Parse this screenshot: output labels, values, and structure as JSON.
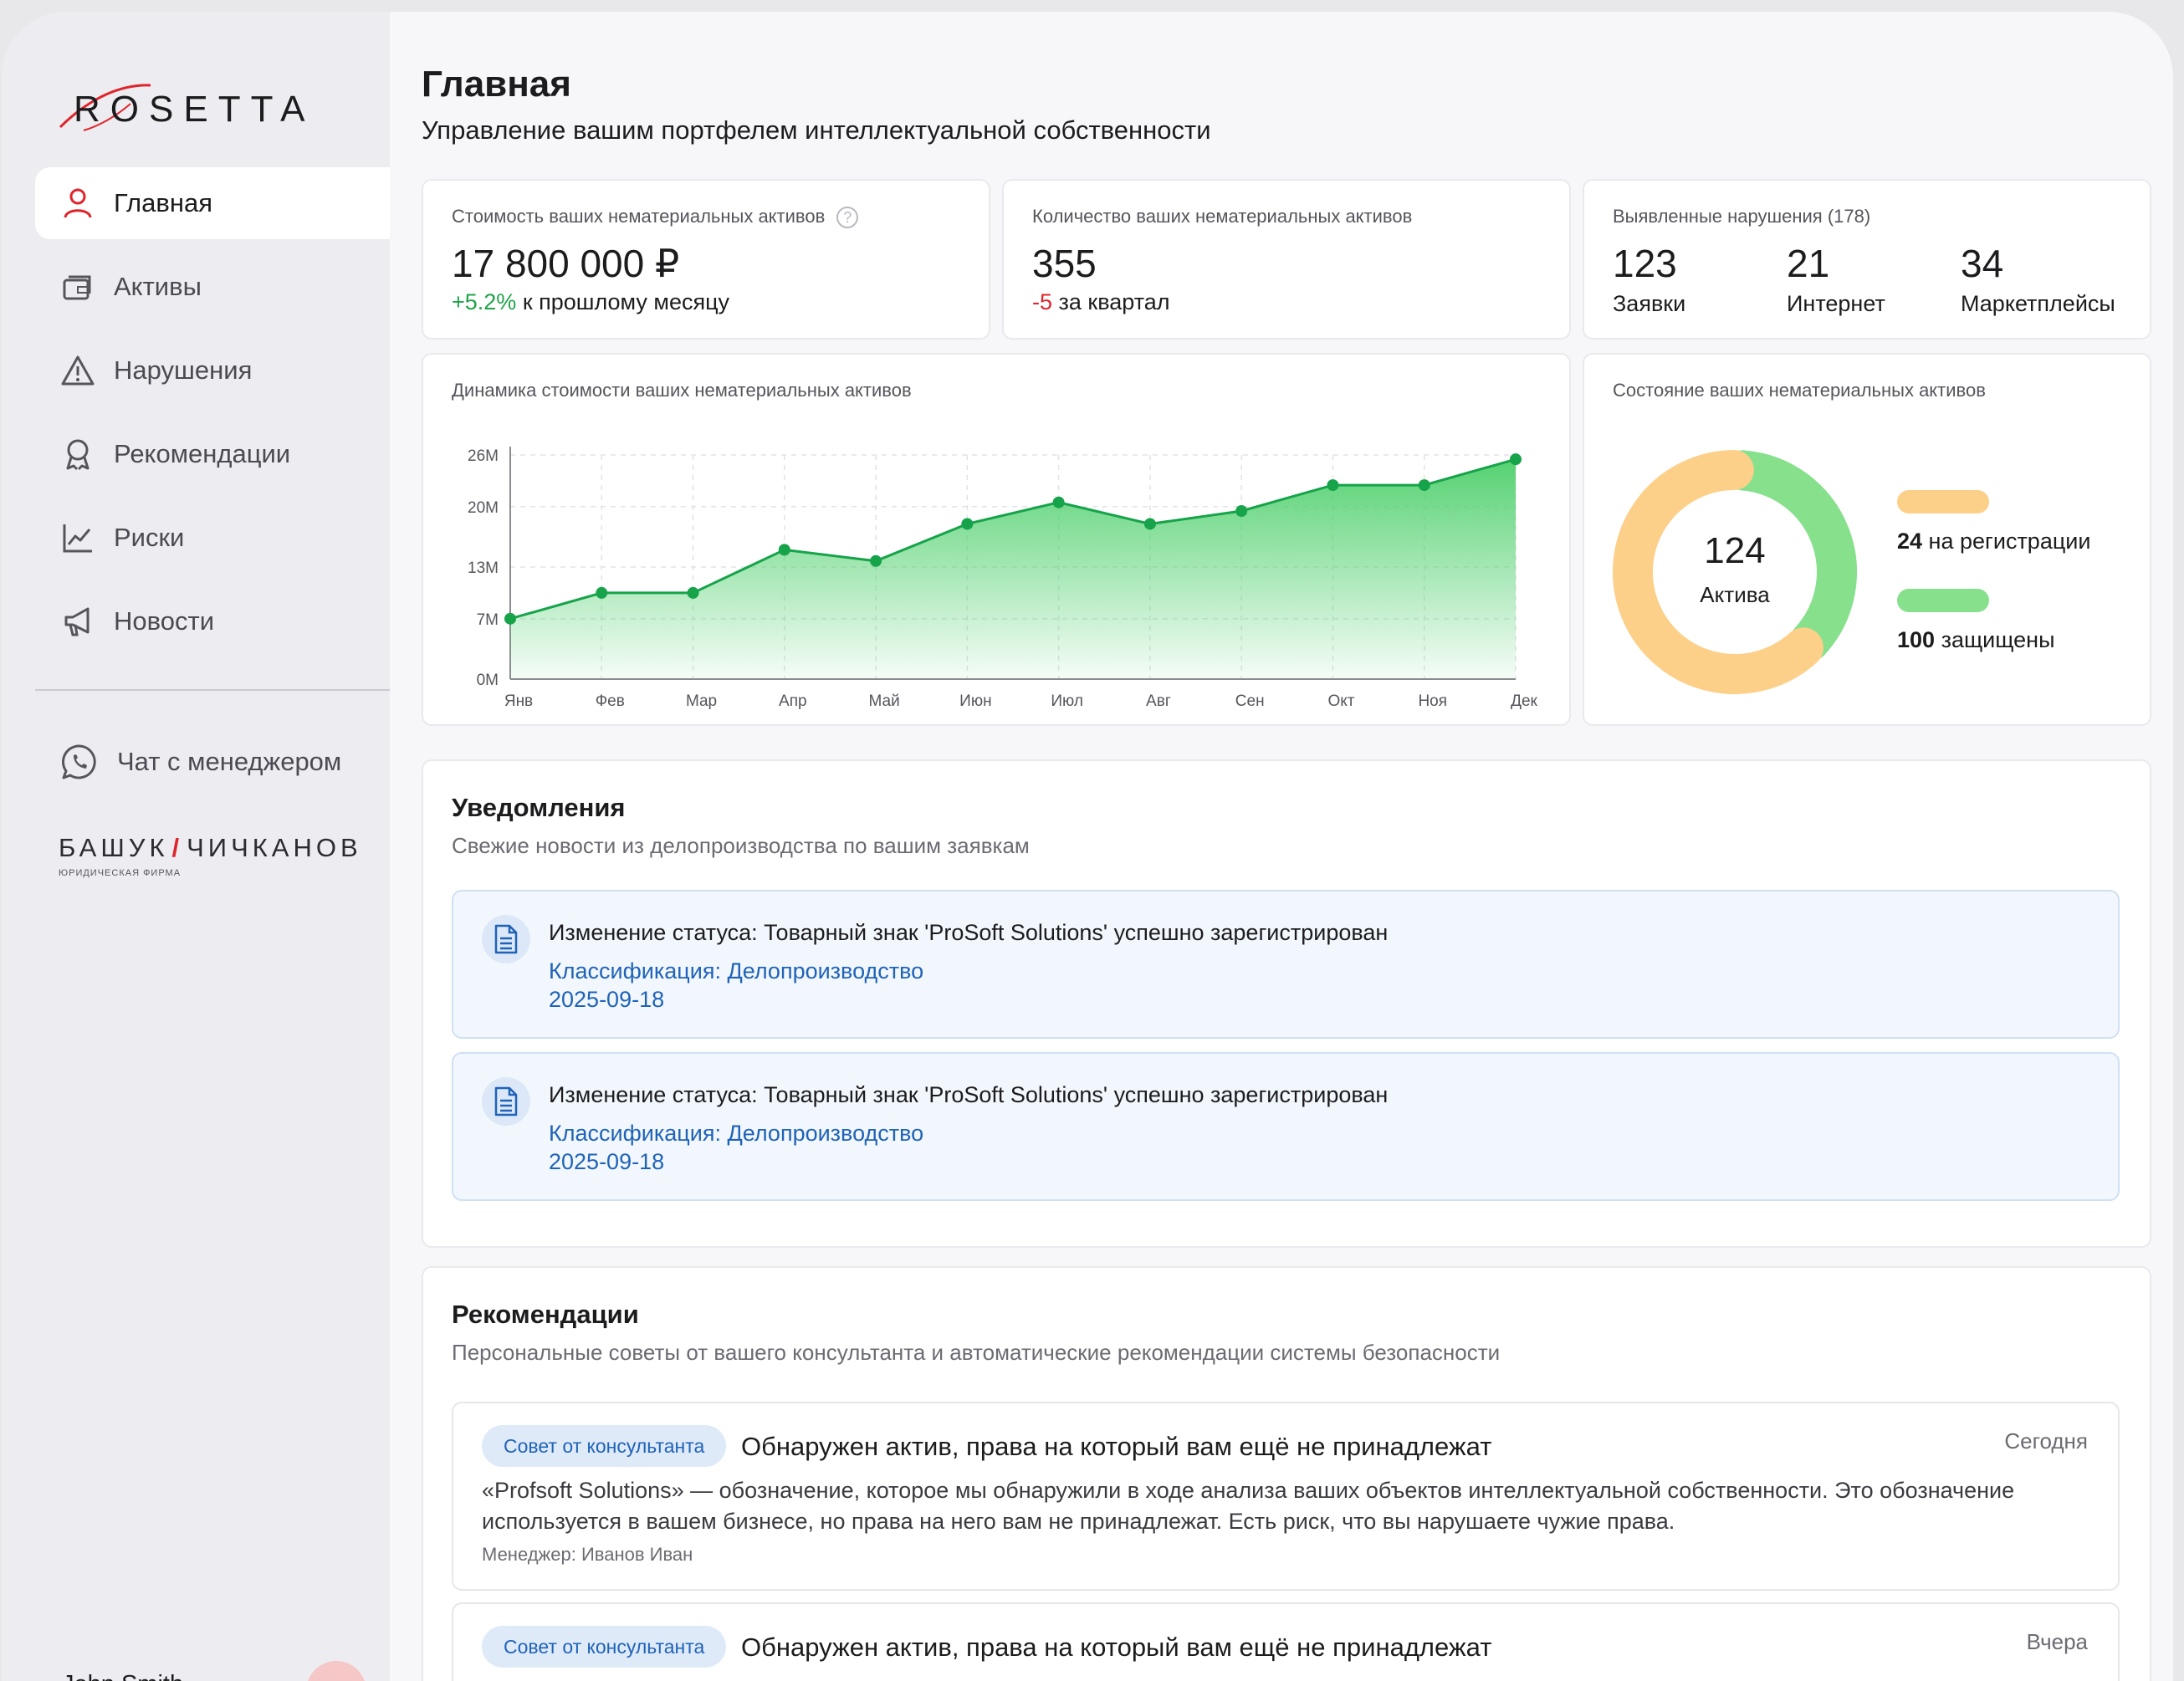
{
  "brand": {
    "logo_text": "ROSETTA",
    "accent": "#e0242b"
  },
  "sidebar": {
    "items": [
      {
        "label": "Главная",
        "icon": "user-icon",
        "active": true
      },
      {
        "label": "Активы",
        "icon": "wallet-icon",
        "active": false
      },
      {
        "label": "Нарушения",
        "icon": "warning-icon",
        "active": false
      },
      {
        "label": "Рекомендации",
        "icon": "award-icon",
        "active": false
      },
      {
        "label": "Риски",
        "icon": "chart-line-icon",
        "active": false
      },
      {
        "label": "Новости",
        "icon": "megaphone-icon",
        "active": false
      }
    ],
    "chat_label": "Чат с менеджером",
    "partner": {
      "name_left": "БАШУК",
      "name_right": "ЧИЧКАНОВ",
      "subtitle": "ЮРИДИЧЕСКАЯ ФИРМА"
    },
    "user_name": "John Smith"
  },
  "header": {
    "title": "Главная",
    "subtitle": "Управление вашим портфелем интеллектуальной собственности"
  },
  "kpis": {
    "value": {
      "label": "Стоимость ваших нематериальных активов",
      "amount": "17 800 000 ₽",
      "delta": "+5.2%",
      "delta_text": " к прошлому месяцу"
    },
    "count": {
      "label": "Количество ваших нематериальных активов",
      "amount": "355",
      "delta": "-5",
      "delta_text": " за квартал"
    },
    "violations": {
      "label": "Выявленные нарушения (178)",
      "items": [
        {
          "value": "123",
          "label": "Заявки"
        },
        {
          "value": "21",
          "label": "Интернет"
        },
        {
          "value": "34",
          "label": "Маркетплейсы"
        }
      ]
    }
  },
  "chart_data": [
    {
      "type": "area",
      "title": "Динамика стоимости ваших нематериальных активов",
      "categories": [
        "Янв",
        "Фев",
        "Мар",
        "Апр",
        "Май",
        "Июн",
        "Июл",
        "Авг",
        "Сен",
        "Окт",
        "Ноя",
        "Дек"
      ],
      "series": [
        {
          "values": [
            7,
            10,
            10,
            15,
            13.7,
            18,
            20.5,
            18,
            19.5,
            22.5,
            22.5,
            25.5
          ]
        }
      ],
      "y_ticks": [
        {
          "value": 0,
          "label": "0M"
        },
        {
          "value": 7,
          "label": "7M"
        },
        {
          "value": 13,
          "label": "13M"
        },
        {
          "value": 20,
          "label": "20M"
        },
        {
          "value": 26,
          "label": "26M"
        }
      ],
      "ylim": [
        0,
        26
      ],
      "grid": true,
      "color": "#16a34a"
    },
    {
      "type": "pie",
      "title": "Состояние ваших нематериальных активов",
      "center_value": "124",
      "center_label": "Актива",
      "slices": [
        {
          "value": 24,
          "label_num": "24",
          "label": " на регистрации",
          "color": "#fdd08a"
        },
        {
          "value": 100,
          "label_num": "100",
          "label": " защищены",
          "color": "#86e08c"
        }
      ]
    }
  ],
  "notifications": {
    "title": "Уведомления",
    "subtitle": "Свежие новости из делопроизводства по вашим заявкам",
    "items": [
      {
        "title": "Изменение статуса: Товарный знак 'ProSoft Solutions' успешно зарегистрирован",
        "classification": "Классификация: Делопроизводство",
        "date": "2025-09-18"
      },
      {
        "title": "Изменение статуса: Товарный знак 'ProSoft Solutions' успешно зарегистрирован",
        "classification": "Классификация: Делопроизводство",
        "date": "2025-09-18"
      }
    ]
  },
  "recommendations": {
    "title": "Рекомендации",
    "subtitle": "Персональные советы от вашего консультанта и автоматические рекомендации системы безопасности",
    "items": [
      {
        "badge": "Совет от консультанта",
        "title": "Обнаружен актив, права на который вам ещё не принадлежат",
        "date": "Сегодня",
        "body": "«Profsoft Solutions» — обозначение, которое мы обнаружили в ходе анализа ваших объектов интеллектуальной собственности. Это обозначение используется в вашем бизнесе, но права на него вам не принадлежат. Есть риск, что вы нарушаете чужие права.",
        "manager": "Менеджер: Иванов Иван"
      },
      {
        "badge": "Совет от консультанта",
        "title": "Обнаружен актив, права на который вам ещё не принадлежат",
        "date": "Вчера"
      }
    ]
  }
}
